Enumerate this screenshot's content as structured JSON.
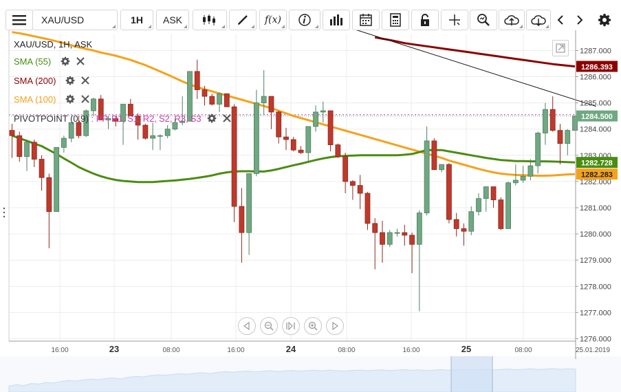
{
  "toolbar": {
    "symbol": "XAU/USD",
    "timeframe": "1H",
    "price_type": "ASK",
    "icons": [
      "menu-icon",
      "candlestick-type-icon",
      "draw-icon",
      "function-icon",
      "info-icon",
      "volume-bars-icon",
      "calendar-icon",
      "calculator-icon",
      "lock-icon",
      "crosshair-icon",
      "zoom-icon",
      "cloud-upload-icon",
      "cloud-download-icon",
      "chevron-left-icon",
      "chevron-right-icon",
      "gear-icon"
    ]
  },
  "legend": {
    "instrument": "XAU/USD, 1H, ASK",
    "sma55": "SMA (55)",
    "sma200": "SMA (200)",
    "sma100": "SMA (100)",
    "pivot_prefix": "PIVOTPOINT (0,9)",
    "pivot_sep": " : ",
    "pivot_items": [
      "PP,",
      "R1,",
      "S1,",
      "R2,",
      "S2,",
      "R3,",
      "S3"
    ]
  },
  "colors": {
    "up": "#6fa882",
    "down": "#c0392b",
    "sma55": "#4a8c10",
    "sma200": "#8b0000",
    "sma100": "#f5a21a",
    "pivot": "#c53fa8",
    "trend": "#111111",
    "last_price": "#6fa882"
  },
  "price_labels": {
    "sma200": "1286.393",
    "last": "1284.500",
    "sma55": "1282.728",
    "sma100": "1282.283"
  },
  "chart_data": {
    "type": "candlestick",
    "title": "XAU/USD, 1H, ASK",
    "y_ticks": [
      "1276.000",
      "1277.000",
      "1278.000",
      "1279.000",
      "1280.000",
      "1281.000",
      "1282.000",
      "1283.000",
      "1284.000",
      "1285.000",
      "1286.000",
      "1287.000"
    ],
    "ylim": [
      1276.0,
      1287.7
    ],
    "x_ticks": [
      "16:00",
      "23",
      "08:00",
      "16:00",
      "24",
      "08:00",
      "16:00",
      "25",
      "08:00"
    ],
    "x_ticks_bold": [
      false,
      true,
      false,
      false,
      true,
      false,
      false,
      true,
      false
    ],
    "date_label": "25.01.2019",
    "grid": true,
    "last_price": 1284.5,
    "candles": [
      [
        1283.95,
        1284.2,
        1282.9,
        1283.75
      ],
      [
        1283.75,
        1283.9,
        1282.75,
        1282.95
      ],
      [
        1282.95,
        1283.6,
        1282.4,
        1283.5
      ],
      [
        1283.5,
        1283.6,
        1282.55,
        1282.85
      ],
      [
        1282.85,
        1283.0,
        1281.65,
        1282.15
      ],
      [
        1282.15,
        1282.3,
        1279.45,
        1280.85
      ],
      [
        1280.85,
        1283.3,
        1280.85,
        1283.3
      ],
      [
        1283.3,
        1283.75,
        1283.1,
        1283.65
      ],
      [
        1283.65,
        1284.25,
        1283.5,
        1284.25
      ],
      [
        1284.25,
        1284.5,
        1283.65,
        1283.75
      ],
      [
        1283.75,
        1284.75,
        1283.7,
        1284.7
      ],
      [
        1284.7,
        1285.2,
        1284.5,
        1285.15
      ],
      [
        1285.15,
        1285.3,
        1284.35,
        1284.35
      ],
      [
        1284.35,
        1284.5,
        1284.0,
        1284.4
      ],
      [
        1284.4,
        1284.5,
        1284.1,
        1284.3
      ],
      [
        1284.3,
        1284.95,
        1283.4,
        1284.95
      ],
      [
        1284.95,
        1285.15,
        1284.5,
        1284.5
      ],
      [
        1284.5,
        1284.6,
        1283.6,
        1284.15
      ],
      [
        1284.15,
        1284.2,
        1283.6,
        1283.65
      ],
      [
        1283.65,
        1284.25,
        1283.2,
        1283.75
      ],
      [
        1283.75,
        1283.8,
        1283.2,
        1283.75
      ],
      [
        1283.75,
        1284.15,
        1283.65,
        1284.0
      ],
      [
        1284.0,
        1284.4,
        1283.95,
        1284.25
      ],
      [
        1284.25,
        1285.25,
        1284.15,
        1284.3
      ],
      [
        1284.3,
        1286.2,
        1284.3,
        1286.2
      ],
      [
        1286.2,
        1286.65,
        1285.15,
        1285.5
      ],
      [
        1285.5,
        1285.65,
        1284.9,
        1285.25
      ],
      [
        1285.25,
        1285.35,
        1284.9,
        1284.95
      ],
      [
        1284.95,
        1285.4,
        1284.65,
        1285.35
      ],
      [
        1285.35,
        1285.35,
        1284.85,
        1284.85
      ],
      [
        1284.85,
        1284.95,
        1280.45,
        1281.05
      ],
      [
        1281.05,
        1281.75,
        1278.9,
        1280.05
      ],
      [
        1280.05,
        1282.3,
        1279.2,
        1282.3
      ],
      [
        1282.3,
        1285.5,
        1282.2,
        1285.0
      ],
      [
        1285.0,
        1286.25,
        1284.55,
        1285.25
      ],
      [
        1285.25,
        1285.25,
        1284.0,
        1284.65
      ],
      [
        1284.65,
        1284.7,
        1283.45,
        1283.7
      ],
      [
        1283.7,
        1284.05,
        1283.2,
        1283.6
      ],
      [
        1283.6,
        1283.7,
        1283.15,
        1283.2
      ],
      [
        1283.2,
        1283.35,
        1283.05,
        1283.1
      ],
      [
        1283.1,
        1284.1,
        1282.7,
        1284.1
      ],
      [
        1284.1,
        1284.9,
        1283.9,
        1284.65
      ],
      [
        1284.65,
        1285.05,
        1284.25,
        1284.7
      ],
      [
        1284.7,
        1284.7,
        1283.15,
        1283.4
      ],
      [
        1283.4,
        1283.45,
        1282.9,
        1282.95
      ],
      [
        1282.95,
        1283.1,
        1281.55,
        1282.0
      ],
      [
        1282.0,
        1282.05,
        1281.3,
        1281.85
      ],
      [
        1281.85,
        1282.25,
        1280.95,
        1281.55
      ],
      [
        1281.55,
        1281.6,
        1280.15,
        1280.4
      ],
      [
        1280.4,
        1280.6,
        1278.65,
        1280.05
      ],
      [
        1280.05,
        1280.5,
        1278.9,
        1279.6
      ],
      [
        1279.6,
        1280.15,
        1279.5,
        1280.05
      ],
      [
        1280.05,
        1280.2,
        1279.9,
        1280.05
      ],
      [
        1280.05,
        1280.35,
        1279.55,
        1279.95
      ],
      [
        1279.95,
        1280.05,
        1278.5,
        1279.6
      ],
      [
        1279.6,
        1280.9,
        1277.05,
        1280.8
      ],
      [
        1280.8,
        1284.1,
        1280.7,
        1283.55
      ],
      [
        1283.55,
        1283.65,
        1282.55,
        1282.45
      ],
      [
        1282.45,
        1282.6,
        1282.35,
        1282.65
      ],
      [
        1282.65,
        1282.7,
        1280.4,
        1280.55
      ],
      [
        1280.55,
        1280.8,
        1279.9,
        1280.2
      ],
      [
        1280.2,
        1280.4,
        1279.55,
        1280.1
      ],
      [
        1280.1,
        1281.05,
        1279.95,
        1280.85
      ],
      [
        1280.85,
        1281.55,
        1280.7,
        1281.35
      ],
      [
        1281.35,
        1281.8,
        1280.85,
        1281.8
      ],
      [
        1281.8,
        1281.8,
        1281.0,
        1281.3
      ],
      [
        1281.3,
        1281.4,
        1280.15,
        1280.2
      ],
      [
        1280.2,
        1282.0,
        1280.2,
        1281.95
      ],
      [
        1281.95,
        1282.65,
        1281.85,
        1282.05
      ],
      [
        1282.05,
        1282.6,
        1281.95,
        1282.2
      ],
      [
        1282.2,
        1282.85,
        1282.05,
        1282.6
      ],
      [
        1282.6,
        1283.9,
        1282.3,
        1283.85
      ],
      [
        1283.85,
        1285.0,
        1283.4,
        1284.75
      ],
      [
        1284.75,
        1285.25,
        1283.9,
        1283.95
      ],
      [
        1283.95,
        1284.2,
        1282.65,
        1283.45
      ],
      [
        1283.45,
        1284.0,
        1283.0,
        1283.95
      ],
      [
        1283.95,
        1284.45,
        1283.95,
        1284.5
      ]
    ],
    "sma55": [
      1283.75,
      1283.65,
      1283.55,
      1283.45,
      1283.35,
      1283.2,
      1283.05,
      1282.88,
      1282.72,
      1282.55,
      1282.42,
      1282.3,
      1282.2,
      1282.12,
      1282.06,
      1282.02,
      1282.0,
      1281.98,
      1281.98,
      1281.98,
      1282.0,
      1282.02,
      1282.04,
      1282.07,
      1282.1,
      1282.14,
      1282.18,
      1282.23,
      1282.3,
      1282.35,
      1282.38,
      1282.39,
      1282.39,
      1282.38,
      1282.38,
      1282.42,
      1282.48,
      1282.55,
      1282.62,
      1282.68,
      1282.75,
      1282.82,
      1282.88,
      1282.93,
      1282.96,
      1282.98,
      1282.99,
      1283.0,
      1283.0,
      1283.0,
      1283.0,
      1283.0,
      1283.0,
      1283.02,
      1283.05,
      1283.12,
      1283.2,
      1283.2,
      1283.2,
      1283.15,
      1283.1,
      1283.05,
      1283.0,
      1282.95,
      1282.9,
      1282.86,
      1282.82,
      1282.8,
      1282.78,
      1282.78,
      1282.77,
      1282.77,
      1282.77,
      1282.76,
      1282.75,
      1282.74,
      1282.73
    ],
    "sma200": [
      1287.5,
      1287.45,
      1287.4,
      1287.34,
      1287.28,
      1287.24,
      1287.2,
      1287.16,
      1287.12,
      1287.08,
      1287.04,
      1287.0,
      1286.96,
      1286.92,
      1286.88,
      1286.84,
      1286.8,
      1286.76,
      1286.72,
      1286.68,
      1286.64,
      1286.6,
      1286.56,
      1286.52,
      1286.48,
      1286.45,
      1286.42,
      1286.39
    ],
    "sma200_start_index": 49,
    "sma100": [
      1287.7,
      1287.66,
      1287.6,
      1287.54,
      1287.48,
      1287.42,
      1287.35,
      1287.28,
      1287.2,
      1287.12,
      1287.06,
      1287.0,
      1286.92,
      1286.86,
      1286.8,
      1286.72,
      1286.64,
      1286.54,
      1286.44,
      1286.32,
      1286.2,
      1286.08,
      1285.95,
      1285.82,
      1285.7,
      1285.6,
      1285.52,
      1285.44,
      1285.36,
      1285.28,
      1285.2,
      1285.12,
      1285.04,
      1284.96,
      1284.88,
      1284.8,
      1284.7,
      1284.6,
      1284.5,
      1284.42,
      1284.34,
      1284.26,
      1284.18,
      1284.1,
      1284.02,
      1283.94,
      1283.86,
      1283.78,
      1283.7,
      1283.62,
      1283.54,
      1283.46,
      1283.38,
      1283.3,
      1283.22,
      1283.14,
      1283.06,
      1282.98,
      1282.9,
      1282.8,
      1282.72,
      1282.64,
      1282.56,
      1282.48,
      1282.41,
      1282.35,
      1282.3,
      1282.27,
      1282.25,
      1282.24,
      1282.23,
      1282.22,
      1282.22,
      1282.23,
      1282.25,
      1282.27,
      1282.28
    ],
    "trend_line": [
      [
        33,
        1289.0
      ],
      [
        77,
        1285.05
      ]
    ],
    "pivot_level": 1284.55,
    "navigator": [
      0.15,
      0.22,
      0.18,
      0.28,
      0.25,
      0.33,
      0.3,
      0.38,
      0.42,
      0.4,
      0.45,
      0.5,
      0.46,
      0.52,
      0.55,
      0.5,
      0.58,
      0.62,
      0.6,
      0.66,
      0.7,
      0.68,
      0.72,
      0.75,
      0.73,
      0.78,
      0.8,
      0.76,
      0.82,
      0.85,
      0.83,
      0.86,
      0.88,
      0.84,
      0.87,
      0.9,
      0.86,
      0.89,
      0.91,
      0.88,
      0.9,
      0.92,
      0.89,
      0.93,
      0.9,
      0.88,
      0.91,
      0.93,
      0.9,
      0.92,
      0.94,
      0.91,
      0.93,
      0.95,
      0.92,
      0.94,
      0.9,
      0.93,
      0.95,
      0.92,
      0.94,
      0.96,
      0.93,
      0.95,
      0.97,
      0.94,
      0.96,
      0.98,
      0.95,
      0.97,
      0.99,
      0.96,
      0.98,
      1.0,
      0.97,
      0.99,
      0.98
    ]
  }
}
